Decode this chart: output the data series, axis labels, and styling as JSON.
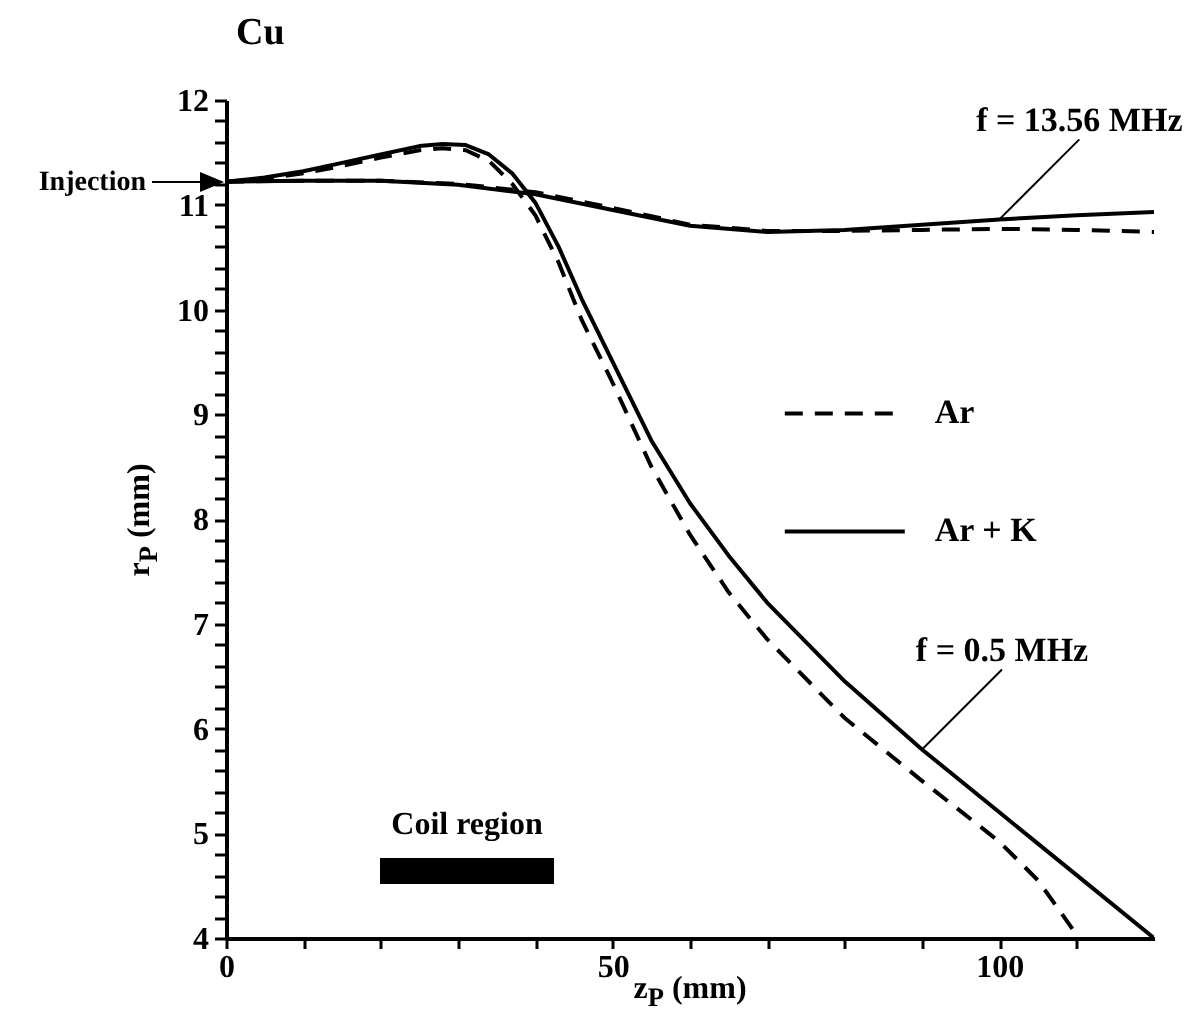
{
  "chart_data": {
    "type": "line",
    "title": "Cu",
    "xlabel": "z$_{P}$ (mm)",
    "ylabel": "r$_{P}$ (mm)",
    "xlim": [
      0,
      120
    ],
    "xticks": [
      0,
      {
        "value": 10,
        "label": null
      },
      {
        "value": 20,
        "label": null
      },
      {
        "value": 30,
        "label": null
      },
      {
        "value": 40,
        "label": null
      },
      50,
      {
        "value": 60,
        "label": null
      },
      {
        "value": 70,
        "label": null
      },
      {
        "value": 80,
        "label": null
      },
      {
        "value": 90,
        "label": null
      },
      100,
      {
        "value": 110,
        "label": null
      }
    ],
    "ylim": [
      4,
      12
    ],
    "yticks": [
      4,
      {
        "value": 4.2,
        "label": null
      },
      {
        "value": 4.4,
        "label": null
      },
      {
        "value": 4.6,
        "label": null
      },
      {
        "value": 4.8,
        "label": null
      },
      5,
      {
        "value": 5.2,
        "label": null
      },
      {
        "value": 5.4,
        "label": null
      },
      {
        "value": 5.6,
        "label": null
      },
      {
        "value": 5.8,
        "label": null
      },
      6,
      {
        "value": 6.2,
        "label": null
      },
      {
        "value": 6.4,
        "label": null
      },
      {
        "value": 6.6,
        "label": null
      },
      {
        "value": 6.8,
        "label": null
      },
      7,
      {
        "value": 7.2,
        "label": null
      },
      {
        "value": 7.4,
        "label": null
      },
      {
        "value": 7.6,
        "label": null
      },
      {
        "value": 7.8,
        "label": null
      },
      8,
      {
        "value": 8.2,
        "label": null
      },
      {
        "value": 8.4,
        "label": null
      },
      {
        "value": 8.6,
        "label": null
      },
      {
        "value": 8.8,
        "label": null
      },
      9,
      {
        "value": 9.2,
        "label": null
      },
      {
        "value": 9.4,
        "label": null
      },
      {
        "value": 9.6,
        "label": null
      },
      {
        "value": 9.8,
        "label": null
      },
      10,
      {
        "value": 10.2,
        "label": null
      },
      {
        "value": 10.4,
        "label": null
      },
      {
        "value": 10.6,
        "label": null
      },
      {
        "value": 10.8,
        "label": null
      },
      11,
      {
        "value": 11.2,
        "label": null
      },
      {
        "value": 11.4,
        "label": null
      },
      {
        "value": 11.6,
        "label": null
      },
      {
        "value": 11.8,
        "label": null
      },
      12
    ],
    "legend": "right",
    "series": [
      {
        "name": "Ar",
        "color": "#000000",
        "line_style": "dashed",
        "x": [
          0,
          10,
          20,
          30,
          40,
          50,
          60,
          70,
          80,
          90,
          100,
          110,
          120
        ],
        "values": [
          11.22,
          11.23,
          11.23,
          11.2,
          11.12,
          10.97,
          10.81,
          10.75,
          10.75,
          10.76,
          10.77,
          10.76,
          10.74
        ]
      },
      {
        "name": "Ar + K",
        "color": "#000000",
        "line_style": "solid",
        "x": [
          0,
          10,
          20,
          30,
          40,
          50,
          60,
          70,
          80,
          90,
          100,
          110,
          120
        ],
        "values": [
          11.22,
          11.23,
          11.23,
          11.19,
          11.1,
          10.95,
          10.8,
          10.74,
          10.76,
          10.81,
          10.86,
          10.9,
          10.93
        ]
      },
      {
        "color": "#000000",
        "line_style": "dashed",
        "x": [
          0,
          5,
          10,
          15,
          20,
          25,
          28,
          31,
          34,
          37,
          40,
          43,
          46,
          50,
          55,
          60,
          65,
          70,
          80,
          90,
          100,
          105,
          110
        ],
        "values": [
          11.22,
          11.25,
          11.3,
          11.37,
          11.45,
          11.52,
          11.54,
          11.52,
          11.42,
          11.2,
          10.9,
          10.45,
          9.9,
          9.3,
          8.5,
          7.85,
          7.3,
          6.85,
          6.1,
          5.5,
          4.92,
          4.55,
          4.03
        ]
      },
      {
        "color": "#000000",
        "line_style": "solid",
        "x": [
          0,
          5,
          10,
          15,
          20,
          25,
          28,
          31,
          34,
          37,
          40,
          43,
          46,
          50,
          55,
          60,
          65,
          70,
          80,
          90,
          100,
          110,
          120
        ],
        "values": [
          11.22,
          11.26,
          11.32,
          11.4,
          11.48,
          11.56,
          11.58,
          11.57,
          11.48,
          11.3,
          11.02,
          10.6,
          10.1,
          9.5,
          8.75,
          8.15,
          7.65,
          7.2,
          6.45,
          5.8,
          5.2,
          4.6,
          4.0
        ]
      }
    ],
    "annotations": [
      {
        "text": "Injection",
        "x": 0,
        "y": 11.22
      },
      {
        "text": "f = 13.56 MHz",
        "x": 100,
        "y": 10.86
      },
      {
        "text": "f = 0.5 MHz",
        "x": 90,
        "y": 5.8
      },
      "Coil region"
    ]
  }
}
